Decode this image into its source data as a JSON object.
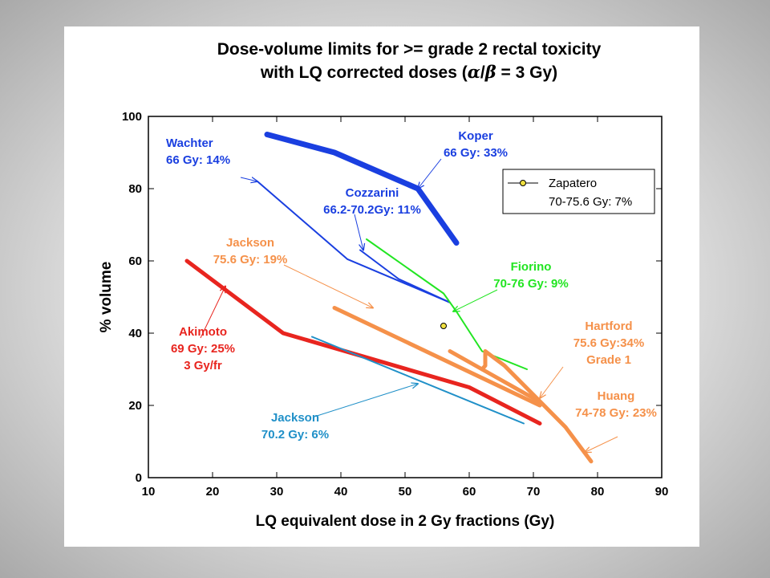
{
  "chart_data": {
    "type": "line",
    "title": "Dose-volume limits for >= grade 2 rectal toxicity",
    "subtitle_prefix": "with LQ corrected doses (",
    "subtitle_alpha": "α",
    "subtitle_slash": "/",
    "subtitle_beta": "β",
    "subtitle_suffix": " = 3 Gy)",
    "xlabel": "LQ equivalent dose in 2 Gy fractions (Gy)",
    "ylabel": "% volume",
    "xlim": [
      10,
      90
    ],
    "ylim": [
      0,
      100
    ],
    "xticks": [
      "10",
      "20",
      "30",
      "40",
      "50",
      "60",
      "70",
      "80",
      "90"
    ],
    "yticks": [
      "0",
      "20",
      "40",
      "60",
      "80",
      "100"
    ],
    "grid": false,
    "series": [
      {
        "name": "Koper",
        "color": "#1a3fe0",
        "width": "thick",
        "x": [
          28.5,
          39,
          52,
          58
        ],
        "y": [
          95,
          90,
          80,
          65
        ]
      },
      {
        "name": "Wachter",
        "color": "#1a3fe0",
        "width": "thin",
        "x": [
          27,
          41,
          57
        ],
        "y": [
          82,
          60.5,
          48.5
        ]
      },
      {
        "name": "Cozzarini",
        "color": "#1a3fe0",
        "width": "thin",
        "x": [
          43,
          49,
          57
        ],
        "y": [
          63,
          55,
          48.5
        ]
      },
      {
        "name": "Fiorino",
        "color": "#22e522",
        "width": "thin",
        "x": [
          44,
          56,
          58,
          62,
          69
        ],
        "y": [
          66,
          51,
          46,
          35,
          30
        ]
      },
      {
        "name": "Jackson",
        "color": "#f5914a",
        "width": "thick",
        "x": [
          39,
          71
        ],
        "y": [
          47,
          20
        ]
      },
      {
        "name": "Hartford",
        "color": "#f5914a",
        "width": "thick",
        "x": [
          57,
          71
        ],
        "y": [
          35,
          21
        ]
      },
      {
        "name": "Huang",
        "color": "#f5914a",
        "width": "thick",
        "x": [
          62,
          62.5,
          62.5,
          65.5,
          75,
          79
        ],
        "y": [
          30,
          31,
          35,
          31,
          14,
          4.5
        ]
      },
      {
        "name": "Akimoto",
        "color": "#e8251f",
        "width": "thick",
        "x": [
          16,
          31,
          60,
          71
        ],
        "y": [
          60,
          40,
          25,
          15
        ]
      },
      {
        "name": "Jackson",
        "color": "#2090c8",
        "width": "thin",
        "x": [
          35.5,
          68.5
        ],
        "y": [
          39,
          15
        ]
      }
    ],
    "points": [
      {
        "name": "Zapatero",
        "x": 56,
        "y": 42,
        "fill": "#f0e040",
        "stroke": "#000000"
      }
    ],
    "legend": {
      "placement": "upper-right",
      "entries": [
        {
          "line1": "Zapatero",
          "line2": "70-75.6 Gy: 7%"
        }
      ]
    },
    "annotations": [
      {
        "lines": [
          "Wachter",
          "66 Gy: 14%"
        ],
        "color": "#1a3fe0",
        "target": [
          27,
          82
        ]
      },
      {
        "lines": [
          "Koper",
          "66 Gy: 33%"
        ],
        "color": "#1a3fe0",
        "target": [
          52,
          80
        ]
      },
      {
        "lines": [
          "Cozzarini",
          "66.2-70.2Gy: 11%"
        ],
        "color": "#1a3fe0",
        "target": [
          43.5,
          63
        ]
      },
      {
        "lines": [
          "Jackson",
          "75.6 Gy: 19%"
        ],
        "color": "#f5914a",
        "target": [
          45,
          47
        ]
      },
      {
        "lines": [
          "Fiorino",
          "70-76 Gy: 9%"
        ],
        "color": "#22e522",
        "target": [
          57.5,
          46
        ]
      },
      {
        "lines": [
          "Akimoto",
          "69 Gy: 25%",
          "3 Gy/fr"
        ],
        "color": "#e8251f",
        "target": [
          22,
          53
        ]
      },
      {
        "lines": [
          "Hartford",
          "75.6 Gy:34%",
          "Grade 1"
        ],
        "color": "#f5914a",
        "target": [
          71,
          22
        ]
      },
      {
        "lines": [
          "Huang",
          "74-78 Gy: 23%"
        ],
        "color": "#f5914a",
        "target": [
          78,
          7
        ]
      },
      {
        "lines": [
          "Jackson",
          "70.2 Gy: 6%"
        ],
        "color": "#2090c8",
        "target": [
          52,
          26
        ]
      }
    ]
  }
}
